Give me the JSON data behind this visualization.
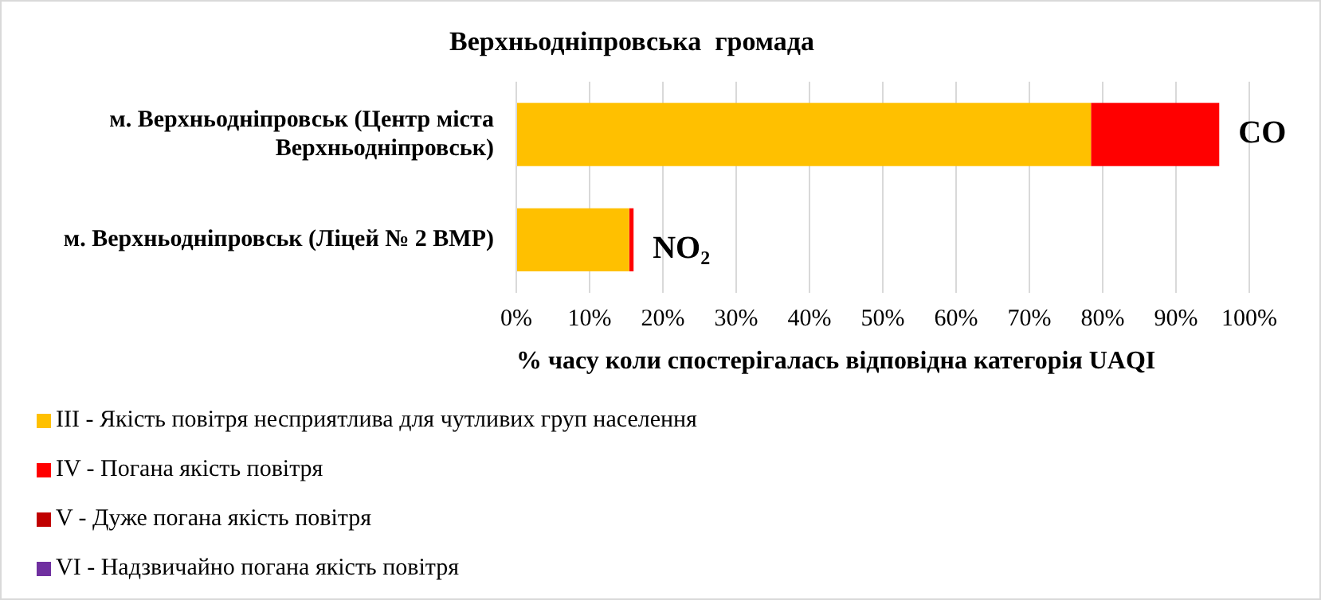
{
  "chart_data": {
    "type": "bar",
    "orientation": "horizontal",
    "stacked": true,
    "title": "Верхньодніпровська  громада",
    "xlabel": "% часу коли спостерігалась відповідна категорія UAQI",
    "categories": [
      "м. Верхньодніпровськ (Центр міста Верхньодніпровськ)",
      "м. Верхньодніпровськ (Ліцей № 2 ВМР)"
    ],
    "series": [
      {
        "name": "III - Якість повітря  несприятлива  для чутливих  груп  населення",
        "color": "#ffc000",
        "values": [
          78.4,
          15.4
        ]
      },
      {
        "name": "IV - Погана  якість повітря",
        "color": "#ff0000",
        "values": [
          17.5,
          0.6
        ]
      },
      {
        "name": "V - Дуже погана  якість повітря",
        "color": "#c00000",
        "values": [
          0,
          0
        ]
      },
      {
        "name": "VI - Надзвичайно  погана  якість повітря",
        "color": "#7030a0",
        "values": [
          0,
          0
        ]
      }
    ],
    "xlim": [
      0,
      100
    ],
    "xticks": [
      {
        "value": 0,
        "label": "0%"
      },
      {
        "value": 10,
        "label": "10%"
      },
      {
        "value": 20,
        "label": "20%"
      },
      {
        "value": 30,
        "label": "30%"
      },
      {
        "value": 40,
        "label": "40%"
      },
      {
        "value": 50,
        "label": "50%"
      },
      {
        "value": 60,
        "label": "60%"
      },
      {
        "value": 70,
        "label": "70%"
      },
      {
        "value": 80,
        "label": "80%"
      },
      {
        "value": 90,
        "label": "90%"
      },
      {
        "value": 100,
        "label": "100%"
      }
    ],
    "annotations": [
      {
        "text": "CO",
        "x": 95.9,
        "y": "м. Верхньодніпровськ (Центр міста Верхньодніпровськ)"
      },
      {
        "text": "NO₂",
        "x": 16.0,
        "y": "м. Верхньодніпровськ (Ліцей № 2 ВМР)"
      }
    ],
    "grid": "x",
    "legend": "bottom left"
  }
}
